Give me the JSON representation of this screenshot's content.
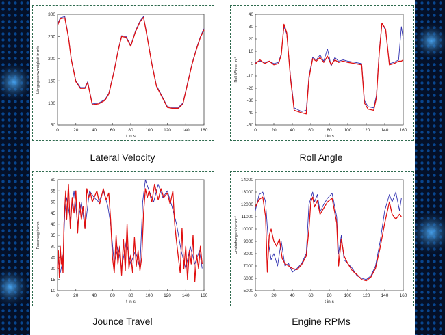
{
  "colors": {
    "background": "#041028",
    "panel": "#ffffff",
    "frame": "#2f6b4f",
    "series_blue": "#3030b0",
    "series_red": "#e01010"
  },
  "captions": [
    "Lateral Velocity",
    "Roll Angle",
    "Jounce Travel",
    "Engine RPMs"
  ],
  "chart_data": [
    {
      "type": "line",
      "title": "",
      "xlabel": "t in s",
      "ylabel": "Längsgeschwindigkeit in m/s",
      "xlim": [
        0,
        160
      ],
      "ylim": [
        50,
        300
      ],
      "xticks": [
        0,
        20,
        40,
        60,
        80,
        100,
        120,
        140,
        160
      ],
      "yticks": [
        50,
        100,
        150,
        200,
        250,
        300
      ],
      "grid": false,
      "series": [
        {
          "color": "#3030b0",
          "x": [
            0,
            3,
            8,
            12,
            15,
            20,
            25,
            30,
            33,
            38,
            45,
            52,
            56,
            62,
            66,
            70,
            75,
            80,
            85,
            90,
            94,
            98,
            103,
            108,
            115,
            120,
            125,
            132,
            137,
            142,
            147,
            152,
            156,
            160
          ],
          "y": [
            278,
            292,
            295,
            250,
            200,
            150,
            135,
            135,
            148,
            98,
            100,
            108,
            122,
            175,
            218,
            252,
            250,
            230,
            262,
            285,
            295,
            250,
            190,
            140,
            112,
            92,
            90,
            90,
            100,
            145,
            190,
            225,
            250,
            268
          ]
        },
        {
          "color": "#e01010",
          "x": [
            0,
            3,
            8,
            12,
            15,
            20,
            25,
            30,
            33,
            38,
            45,
            52,
            56,
            62,
            66,
            70,
            75,
            80,
            85,
            90,
            94,
            98,
            103,
            108,
            115,
            120,
            125,
            132,
            137,
            142,
            147,
            152,
            156,
            160
          ],
          "y": [
            275,
            290,
            292,
            248,
            198,
            148,
            133,
            133,
            146,
            96,
            98,
            106,
            120,
            173,
            216,
            250,
            248,
            228,
            260,
            283,
            293,
            248,
            188,
            138,
            110,
            90,
            88,
            88,
            98,
            143,
            188,
            223,
            248,
            265
          ]
        }
      ]
    },
    {
      "type": "line",
      "title": "",
      "xlabel": "t in s",
      "ylabel": "Roll-Winkel in °",
      "xlim": [
        0,
        160
      ],
      "ylim": [
        -50,
        40
      ],
      "xticks": [
        0,
        20,
        40,
        60,
        80,
        100,
        120,
        140,
        160
      ],
      "yticks": [
        -50,
        -40,
        -30,
        -20,
        -10,
        0,
        10,
        20,
        30,
        40
      ],
      "grid": false,
      "series": [
        {
          "color": "#3030b0",
          "x": [
            0,
            5,
            10,
            15,
            20,
            25,
            28,
            31,
            34,
            38,
            42,
            50,
            55,
            58,
            62,
            66,
            70,
            74,
            78,
            82,
            86,
            90,
            95,
            100,
            108,
            115,
            118,
            122,
            128,
            131,
            134,
            137,
            141,
            145,
            150,
            155,
            158,
            160
          ],
          "y": [
            1,
            2,
            1,
            2,
            0,
            1,
            8,
            30,
            24,
            -10,
            -36,
            -39,
            -38,
            -10,
            5,
            3,
            7,
            2,
            12,
            -2,
            5,
            2,
            3,
            2,
            1,
            0,
            -30,
            -35,
            -36,
            -26,
            10,
            33,
            27,
            0,
            1,
            3,
            30,
            20
          ]
        },
        {
          "color": "#e01010",
          "x": [
            0,
            5,
            10,
            15,
            20,
            25,
            28,
            31,
            34,
            38,
            42,
            50,
            55,
            58,
            62,
            66,
            70,
            74,
            78,
            82,
            86,
            90,
            95,
            100,
            108,
            115,
            118,
            122,
            128,
            131,
            134,
            137,
            141,
            145,
            150,
            155,
            158,
            160
          ],
          "y": [
            0,
            3,
            0,
            2,
            -1,
            0,
            7,
            32,
            25,
            -12,
            -38,
            -40,
            -41,
            -12,
            4,
            2,
            5,
            1,
            6,
            -1,
            3,
            1,
            2,
            1,
            0,
            -1,
            -32,
            -37,
            -38,
            -28,
            8,
            33,
            28,
            -1,
            0,
            2,
            2,
            3
          ]
        }
      ]
    },
    {
      "type": "line",
      "title": "",
      "xlabel": "t in s",
      "ylabel": "Federweg in mm",
      "xlim": [
        0,
        160
      ],
      "ylim": [
        10,
        60
      ],
      "xticks": [
        0,
        20,
        40,
        60,
        80,
        100,
        120,
        140,
        160
      ],
      "yticks": [
        10,
        15,
        20,
        25,
        30,
        35,
        40,
        45,
        50,
        55,
        60
      ],
      "grid": false,
      "series": [
        {
          "color": "#3030b0",
          "x": [
            0,
            3,
            6,
            8,
            10,
            14,
            18,
            22,
            26,
            30,
            35,
            40,
            45,
            50,
            55,
            58,
            62,
            66,
            70,
            75,
            80,
            85,
            90,
            93,
            96,
            100,
            105,
            110,
            115,
            120,
            125,
            130,
            135,
            140,
            145,
            150,
            155,
            158
          ],
          "y": [
            25,
            18,
            24,
            45,
            52,
            42,
            55,
            40,
            50,
            38,
            55,
            52,
            50,
            55,
            48,
            40,
            22,
            30,
            20,
            32,
            22,
            28,
            20,
            50,
            60,
            55,
            50,
            58,
            52,
            55,
            48,
            40,
            28,
            20,
            30,
            22,
            28,
            20
          ]
        },
        {
          "color": "#e01010",
          "x": [
            0,
            1,
            2,
            3,
            4,
            5,
            6,
            7,
            8,
            9,
            10,
            12,
            14,
            16,
            18,
            20,
            22,
            24,
            26,
            28,
            30,
            32,
            34,
            36,
            38,
            40,
            43,
            46,
            50,
            53,
            56,
            58,
            60,
            62,
            64,
            66,
            68,
            70,
            72,
            74,
            76,
            78,
            80,
            82,
            84,
            86,
            88,
            90,
            92,
            94,
            96,
            98,
            100,
            103,
            106,
            110,
            113,
            116,
            120,
            123,
            126,
            128,
            130,
            132,
            134,
            136,
            138,
            140,
            142,
            144,
            146,
            148,
            150,
            152,
            154,
            156,
            158
          ],
          "y": [
            20,
            28,
            16,
            30,
            22,
            26,
            18,
            40,
            48,
            55,
            42,
            58,
            38,
            52,
            45,
            55,
            36,
            50,
            42,
            48,
            38,
            56,
            52,
            54,
            50,
            52,
            55,
            49,
            56,
            51,
            54,
            42,
            25,
            18,
            35,
            22,
            30,
            17,
            33,
            19,
            40,
            20,
            26,
            18,
            34,
            21,
            28,
            19,
            25,
            45,
            56,
            52,
            55,
            50,
            58,
            51,
            56,
            52,
            54,
            49,
            55,
            40,
            32,
            25,
            18,
            38,
            20,
            30,
            15,
            28,
            22,
            35,
            14,
            26,
            20,
            30,
            22
          ]
        }
      ]
    },
    {
      "type": "line",
      "title": "",
      "xlabel": "t in s",
      "ylabel": "Umdrehungen in min⁻¹",
      "xlim": [
        0,
        160
      ],
      "ylim": [
        5000,
        14000
      ],
      "xticks": [
        0,
        20,
        40,
        60,
        80,
        100,
        120,
        140,
        160
      ],
      "yticks": [
        5000,
        6000,
        7000,
        8000,
        9000,
        10000,
        11000,
        12000,
        13000,
        14000
      ],
      "grid": false,
      "series": [
        {
          "color": "#3030b0",
          "x": [
            0,
            4,
            8,
            11,
            14,
            17,
            20,
            24,
            28,
            32,
            36,
            40,
            45,
            50,
            55,
            58,
            62,
            64,
            67,
            70,
            74,
            78,
            83,
            88,
            90,
            93,
            96,
            100,
            105,
            110,
            115,
            120,
            125,
            130,
            135,
            140,
            145,
            148,
            152,
            156,
            158
          ],
          "y": [
            11500,
            12800,
            13000,
            12200,
            9000,
            7500,
            8000,
            7000,
            9000,
            7000,
            7200,
            6500,
            6800,
            7200,
            8000,
            12000,
            13000,
            12200,
            12800,
            11400,
            12000,
            12500,
            12900,
            11000,
            8000,
            9500,
            7500,
            7200,
            6800,
            6200,
            6000,
            5900,
            6200,
            7000,
            9000,
            11500,
            12800,
            12200,
            13000,
            11500,
            12500
          ]
        },
        {
          "color": "#e01010",
          "x": [
            0,
            4,
            8,
            11,
            13,
            15,
            17,
            20,
            23,
            26,
            29,
            32,
            36,
            40,
            45,
            50,
            55,
            58,
            60,
            62,
            64,
            67,
            70,
            74,
            78,
            83,
            88,
            90,
            93,
            96,
            100,
            105,
            110,
            115,
            120,
            125,
            130,
            135,
            140,
            145,
            148,
            152,
            156,
            158
          ],
          "y": [
            11800,
            12400,
            12600,
            11000,
            6500,
            9500,
            10000,
            9000,
            8600,
            9200,
            7600,
            7200,
            7000,
            6800,
            6700,
            7100,
            7800,
            10000,
            12200,
            12600,
            11800,
            12300,
            11200,
            11700,
            12200,
            12500,
            10500,
            7000,
            9200,
            7800,
            7200,
            6600,
            6300,
            5900,
            5800,
            6100,
            6800,
            8500,
            10500,
            12200,
            11200,
            10800,
            11200,
            11000
          ]
        }
      ]
    }
  ]
}
